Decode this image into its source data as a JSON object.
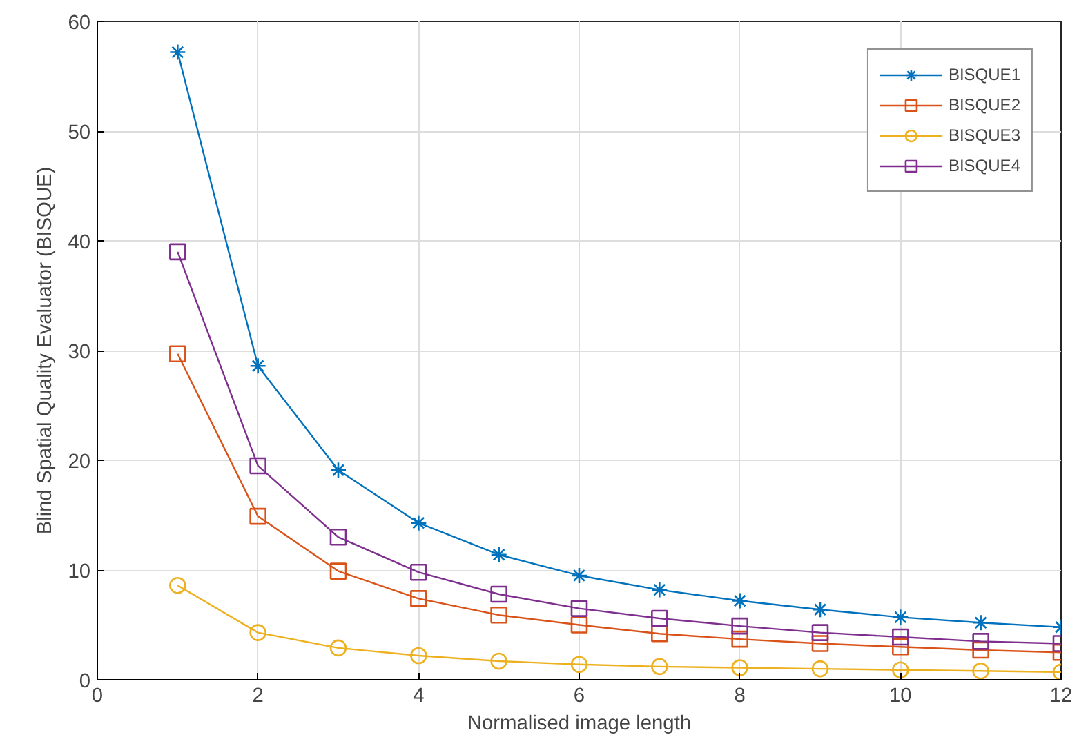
{
  "chart_data": {
    "type": "line",
    "xlabel": "Normalised image length",
    "ylabel": "Blind Spatial Quality Evaluator (BISQUE)",
    "x": [
      1,
      2,
      3,
      4,
      5,
      6,
      7,
      8,
      9,
      10,
      11,
      12
    ],
    "series": [
      {
        "name": "BISQUE1",
        "color": "#0072bd",
        "marker": "cross",
        "values": [
          57.2,
          28.6,
          19.1,
          14.3,
          11.4,
          9.5,
          8.2,
          7.2,
          6.4,
          5.7,
          5.2,
          4.8
        ]
      },
      {
        "name": "BISQUE2",
        "color": "#d95319",
        "marker": "square",
        "values": [
          29.7,
          14.9,
          9.9,
          7.4,
          5.9,
          5.0,
          4.2,
          3.7,
          3.3,
          3.0,
          2.7,
          2.5
        ]
      },
      {
        "name": "BISQUE3",
        "color": "#edb120",
        "marker": "circle",
        "values": [
          8.6,
          4.3,
          2.9,
          2.2,
          1.7,
          1.4,
          1.2,
          1.1,
          1.0,
          0.9,
          0.8,
          0.7
        ]
      },
      {
        "name": "BISQUE4",
        "color": "#7e2f8e",
        "marker": "square",
        "values": [
          39.0,
          19.5,
          13.0,
          9.8,
          7.8,
          6.5,
          5.6,
          4.9,
          4.3,
          3.9,
          3.5,
          3.3
        ]
      }
    ],
    "xlim": [
      0,
      12
    ],
    "xticks": [
      0,
      2,
      4,
      6,
      8,
      10,
      12
    ],
    "ylim": [
      0,
      60
    ],
    "yticks": [
      0,
      10,
      20,
      30,
      40,
      50,
      60
    ],
    "grid": true,
    "legend": "top right",
    "line_style": "solid"
  }
}
